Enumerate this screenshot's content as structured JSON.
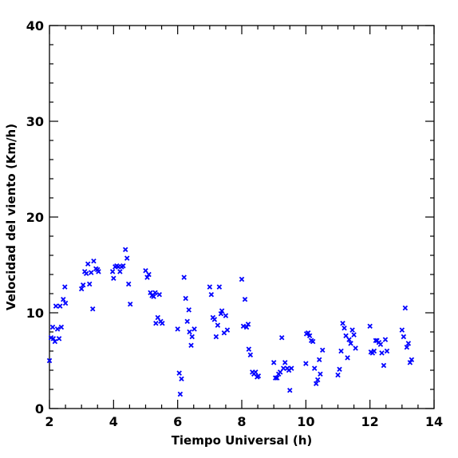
{
  "chart_data": {
    "type": "scatter",
    "title": "",
    "xlabel": "Tiempo Universal (h)",
    "ylabel": "Velocidad del viento (Km/h)",
    "xlim": [
      2,
      14
    ],
    "ylim": [
      0,
      40
    ],
    "xticks": [
      2,
      4,
      6,
      8,
      10,
      12,
      14
    ],
    "yticks": [
      0,
      10,
      20,
      30,
      40
    ],
    "xtick_labels": [
      "2",
      "4",
      "6",
      "8",
      "10",
      "12",
      "14"
    ],
    "ytick_labels": [
      "0",
      "10",
      "20",
      "30",
      "40"
    ],
    "grid": false,
    "legend": "none",
    "marker": "x",
    "marker_color": "#0000ff",
    "points": [
      [
        2.0,
        5.0
      ],
      [
        2.05,
        7.4
      ],
      [
        2.1,
        8.5
      ],
      [
        2.12,
        7.3
      ],
      [
        2.17,
        7.0
      ],
      [
        2.2,
        10.7
      ],
      [
        2.25,
        8.3
      ],
      [
        2.3,
        7.3
      ],
      [
        2.33,
        10.7
      ],
      [
        2.37,
        8.5
      ],
      [
        2.43,
        11.4
      ],
      [
        2.48,
        12.7
      ],
      [
        2.5,
        11.0
      ],
      [
        3.0,
        12.5
      ],
      [
        3.05,
        12.9
      ],
      [
        3.1,
        14.3
      ],
      [
        3.15,
        14.1
      ],
      [
        3.2,
        15.1
      ],
      [
        3.25,
        13.0
      ],
      [
        3.3,
        14.2
      ],
      [
        3.35,
        10.4
      ],
      [
        3.38,
        15.4
      ],
      [
        3.45,
        14.6
      ],
      [
        3.5,
        14.5
      ],
      [
        3.53,
        14.3
      ],
      [
        3.97,
        14.3
      ],
      [
        4.0,
        13.6
      ],
      [
        4.05,
        14.8
      ],
      [
        4.1,
        14.9
      ],
      [
        4.15,
        14.8
      ],
      [
        4.2,
        14.3
      ],
      [
        4.25,
        14.8
      ],
      [
        4.3,
        14.9
      ],
      [
        4.37,
        16.6
      ],
      [
        4.42,
        15.7
      ],
      [
        4.47,
        13.0
      ],
      [
        4.52,
        10.9
      ],
      [
        5.0,
        14.4
      ],
      [
        5.05,
        13.7
      ],
      [
        5.1,
        14.0
      ],
      [
        5.15,
        12.1
      ],
      [
        5.2,
        11.8
      ],
      [
        5.25,
        11.7
      ],
      [
        5.3,
        12.1
      ],
      [
        5.32,
        8.9
      ],
      [
        5.38,
        9.5
      ],
      [
        5.43,
        11.9
      ],
      [
        5.47,
        9.1
      ],
      [
        5.52,
        8.9
      ],
      [
        6.0,
        8.3
      ],
      [
        6.05,
        3.7
      ],
      [
        6.08,
        1.5
      ],
      [
        6.12,
        3.1
      ],
      [
        6.2,
        13.7
      ],
      [
        6.25,
        11.5
      ],
      [
        6.3,
        9.1
      ],
      [
        6.35,
        10.3
      ],
      [
        6.37,
        8.0
      ],
      [
        6.42,
        6.6
      ],
      [
        6.45,
        7.5
      ],
      [
        6.52,
        8.3
      ],
      [
        7.0,
        12.7
      ],
      [
        7.05,
        11.9
      ],
      [
        7.1,
        9.5
      ],
      [
        7.15,
        9.3
      ],
      [
        7.2,
        7.5
      ],
      [
        7.25,
        8.7
      ],
      [
        7.3,
        12.7
      ],
      [
        7.35,
        9.9
      ],
      [
        7.38,
        10.2
      ],
      [
        7.45,
        7.9
      ],
      [
        7.5,
        9.7
      ],
      [
        7.55,
        8.2
      ],
      [
        8.0,
        13.5
      ],
      [
        8.05,
        8.6
      ],
      [
        8.1,
        11.4
      ],
      [
        8.15,
        8.5
      ],
      [
        8.2,
        8.8
      ],
      [
        8.22,
        6.2
      ],
      [
        8.27,
        5.6
      ],
      [
        8.33,
        3.8
      ],
      [
        8.38,
        3.6
      ],
      [
        8.43,
        3.8
      ],
      [
        8.48,
        3.3
      ],
      [
        8.52,
        3.4
      ],
      [
        9.0,
        4.8
      ],
      [
        9.05,
        3.2
      ],
      [
        9.1,
        3.2
      ],
      [
        9.15,
        3.6
      ],
      [
        9.2,
        3.8
      ],
      [
        9.25,
        7.4
      ],
      [
        9.3,
        4.2
      ],
      [
        9.35,
        4.8
      ],
      [
        9.42,
        4.2
      ],
      [
        9.47,
        4.0
      ],
      [
        9.5,
        1.9
      ],
      [
        9.55,
        4.2
      ],
      [
        10.0,
        4.7
      ],
      [
        10.02,
        7.8
      ],
      [
        10.07,
        7.9
      ],
      [
        10.12,
        7.6
      ],
      [
        10.17,
        7.1
      ],
      [
        10.22,
        7.0
      ],
      [
        10.27,
        4.2
      ],
      [
        10.32,
        2.6
      ],
      [
        10.37,
        3.0
      ],
      [
        10.42,
        5.1
      ],
      [
        10.45,
        3.6
      ],
      [
        10.52,
        6.1
      ],
      [
        11.0,
        3.5
      ],
      [
        11.05,
        4.1
      ],
      [
        11.1,
        6.0
      ],
      [
        11.15,
        8.9
      ],
      [
        11.2,
        8.4
      ],
      [
        11.25,
        7.6
      ],
      [
        11.3,
        5.3
      ],
      [
        11.35,
        7.2
      ],
      [
        11.4,
        6.8
      ],
      [
        11.45,
        8.2
      ],
      [
        11.5,
        7.7
      ],
      [
        11.55,
        6.3
      ],
      [
        12.0,
        8.6
      ],
      [
        12.03,
        5.9
      ],
      [
        12.08,
        5.8
      ],
      [
        12.13,
        6.0
      ],
      [
        12.18,
        7.1
      ],
      [
        12.22,
        7.1
      ],
      [
        12.28,
        6.9
      ],
      [
        12.33,
        6.7
      ],
      [
        12.37,
        5.8
      ],
      [
        12.43,
        4.5
      ],
      [
        12.48,
        7.2
      ],
      [
        12.53,
        6.0
      ],
      [
        13.0,
        8.2
      ],
      [
        13.05,
        7.5
      ],
      [
        13.1,
        10.5
      ],
      [
        13.15,
        6.4
      ],
      [
        13.2,
        6.8
      ],
      [
        13.25,
        4.8
      ],
      [
        13.3,
        5.1
      ]
    ]
  }
}
